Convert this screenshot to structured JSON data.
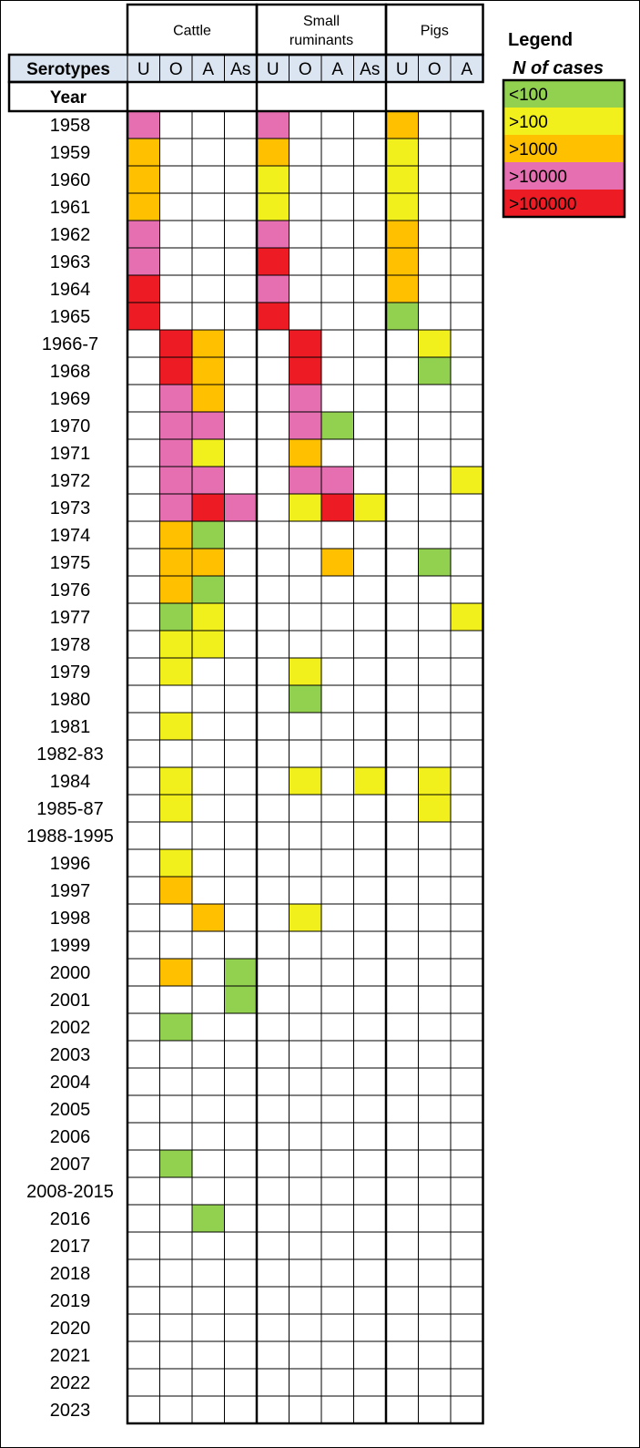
{
  "chart_data": {
    "type": "heatmap",
    "row_header": "Year",
    "column_header": "Serotypes",
    "groups": [
      {
        "name": "Cattle",
        "name_lines": [
          "Cattle"
        ],
        "serotypes": [
          "U",
          "O",
          "A",
          "As"
        ]
      },
      {
        "name": "Small ruminants",
        "name_lines": [
          "Small",
          "ruminants"
        ],
        "serotypes": [
          "U",
          "O",
          "A",
          "As"
        ]
      },
      {
        "name": "Pigs",
        "name_lines": [
          "Pigs"
        ],
        "serotypes": [
          "U",
          "O",
          "A"
        ]
      }
    ],
    "years": [
      "1958",
      "1959",
      "1960",
      "1961",
      "1962",
      "1963",
      "1964",
      "1965",
      "1966-7",
      "1968",
      "1969",
      "1970",
      "1971",
      "1972",
      "1973",
      "1974",
      "1975",
      "1976",
      "1977",
      "1978",
      "1979",
      "1980",
      "1981",
      "1982-83",
      "1984",
      "1985-87",
      "1988-1995",
      "1996",
      "1997",
      "1998",
      "1999",
      "2000",
      "2001",
      "2002",
      "2003",
      "2004",
      "2005",
      "2006",
      "2007",
      "2008-2015",
      "2016",
      "2017",
      "2018",
      "2019",
      "2020",
      "2021",
      "2022",
      "2023"
    ],
    "legend": {
      "title": "Legend",
      "subtitle": "N of cases",
      "categories": [
        {
          "code": 1,
          "label": "<100",
          "color": "#92d050"
        },
        {
          "code": 2,
          "label": ">100",
          "color": "#f2f01c"
        },
        {
          "code": 3,
          "label": ">1000",
          "color": "#ffc000"
        },
        {
          "code": 4,
          "label": ">10000",
          "color": "#e56fb0"
        },
        {
          "code": 5,
          "label": ">100000",
          "color": "#ed1c24"
        }
      ]
    },
    "columns": [
      "Cattle U",
      "Cattle O",
      "Cattle A",
      "Cattle As",
      "Small ruminants U",
      "Small ruminants O",
      "Small ruminants A",
      "Small ruminants As",
      "Pigs U",
      "Pigs O",
      "Pigs A"
    ],
    "values": [
      [
        4,
        0,
        0,
        0,
        4,
        0,
        0,
        0,
        3,
        0,
        0
      ],
      [
        3,
        0,
        0,
        0,
        3,
        0,
        0,
        0,
        2,
        0,
        0
      ],
      [
        3,
        0,
        0,
        0,
        2,
        0,
        0,
        0,
        2,
        0,
        0
      ],
      [
        3,
        0,
        0,
        0,
        2,
        0,
        0,
        0,
        2,
        0,
        0
      ],
      [
        4,
        0,
        0,
        0,
        4,
        0,
        0,
        0,
        3,
        0,
        0
      ],
      [
        4,
        0,
        0,
        0,
        5,
        0,
        0,
        0,
        3,
        0,
        0
      ],
      [
        5,
        0,
        0,
        0,
        4,
        0,
        0,
        0,
        3,
        0,
        0
      ],
      [
        5,
        0,
        0,
        0,
        5,
        0,
        0,
        0,
        1,
        0,
        0
      ],
      [
        0,
        5,
        3,
        0,
        0,
        5,
        0,
        0,
        0,
        2,
        0
      ],
      [
        0,
        5,
        3,
        0,
        0,
        5,
        0,
        0,
        0,
        1,
        0
      ],
      [
        0,
        4,
        3,
        0,
        0,
        4,
        0,
        0,
        0,
        0,
        0
      ],
      [
        0,
        4,
        4,
        0,
        0,
        4,
        1,
        0,
        0,
        0,
        0
      ],
      [
        0,
        4,
        2,
        0,
        0,
        3,
        0,
        0,
        0,
        0,
        0
      ],
      [
        0,
        4,
        4,
        0,
        0,
        4,
        4,
        0,
        0,
        0,
        2
      ],
      [
        0,
        4,
        5,
        4,
        0,
        2,
        5,
        2,
        0,
        0,
        0
      ],
      [
        0,
        3,
        1,
        0,
        0,
        0,
        0,
        0,
        0,
        0,
        0
      ],
      [
        0,
        3,
        3,
        0,
        0,
        0,
        3,
        0,
        0,
        1,
        0
      ],
      [
        0,
        3,
        1,
        0,
        0,
        0,
        0,
        0,
        0,
        0,
        0
      ],
      [
        0,
        1,
        2,
        0,
        0,
        0,
        0,
        0,
        0,
        0,
        2
      ],
      [
        0,
        2,
        2,
        0,
        0,
        0,
        0,
        0,
        0,
        0,
        0
      ],
      [
        0,
        2,
        0,
        0,
        0,
        2,
        0,
        0,
        0,
        0,
        0
      ],
      [
        0,
        0,
        0,
        0,
        0,
        1,
        0,
        0,
        0,
        0,
        0
      ],
      [
        0,
        2,
        0,
        0,
        0,
        0,
        0,
        0,
        0,
        0,
        0
      ],
      [
        0,
        0,
        0,
        0,
        0,
        0,
        0,
        0,
        0,
        0,
        0
      ],
      [
        0,
        2,
        0,
        0,
        0,
        2,
        0,
        2,
        0,
        2,
        0
      ],
      [
        0,
        2,
        0,
        0,
        0,
        0,
        0,
        0,
        0,
        2,
        0
      ],
      [
        0,
        0,
        0,
        0,
        0,
        0,
        0,
        0,
        0,
        0,
        0
      ],
      [
        0,
        2,
        0,
        0,
        0,
        0,
        0,
        0,
        0,
        0,
        0
      ],
      [
        0,
        3,
        0,
        0,
        0,
        0,
        0,
        0,
        0,
        0,
        0
      ],
      [
        0,
        0,
        3,
        0,
        0,
        2,
        0,
        0,
        0,
        0,
        0
      ],
      [
        0,
        0,
        0,
        0,
        0,
        0,
        0,
        0,
        0,
        0,
        0
      ],
      [
        0,
        3,
        0,
        1,
        0,
        0,
        0,
        0,
        0,
        0,
        0
      ],
      [
        0,
        0,
        0,
        1,
        0,
        0,
        0,
        0,
        0,
        0,
        0
      ],
      [
        0,
        1,
        0,
        0,
        0,
        0,
        0,
        0,
        0,
        0,
        0
      ],
      [
        0,
        0,
        0,
        0,
        0,
        0,
        0,
        0,
        0,
        0,
        0
      ],
      [
        0,
        0,
        0,
        0,
        0,
        0,
        0,
        0,
        0,
        0,
        0
      ],
      [
        0,
        0,
        0,
        0,
        0,
        0,
        0,
        0,
        0,
        0,
        0
      ],
      [
        0,
        0,
        0,
        0,
        0,
        0,
        0,
        0,
        0,
        0,
        0
      ],
      [
        0,
        1,
        0,
        0,
        0,
        0,
        0,
        0,
        0,
        0,
        0
      ],
      [
        0,
        0,
        0,
        0,
        0,
        0,
        0,
        0,
        0,
        0,
        0
      ],
      [
        0,
        0,
        1,
        0,
        0,
        0,
        0,
        0,
        0,
        0,
        0
      ],
      [
        0,
        0,
        0,
        0,
        0,
        0,
        0,
        0,
        0,
        0,
        0
      ],
      [
        0,
        0,
        0,
        0,
        0,
        0,
        0,
        0,
        0,
        0,
        0
      ],
      [
        0,
        0,
        0,
        0,
        0,
        0,
        0,
        0,
        0,
        0,
        0
      ],
      [
        0,
        0,
        0,
        0,
        0,
        0,
        0,
        0,
        0,
        0,
        0
      ],
      [
        0,
        0,
        0,
        0,
        0,
        0,
        0,
        0,
        0,
        0,
        0
      ],
      [
        0,
        0,
        0,
        0,
        0,
        0,
        0,
        0,
        0,
        0,
        0
      ],
      [
        0,
        0,
        0,
        0,
        0,
        0,
        0,
        0,
        0,
        0,
        0
      ]
    ],
    "colors": {
      "header_fill": "#dbe5f1",
      "cell_empty": "#ffffff",
      "grid": "#000000"
    }
  }
}
